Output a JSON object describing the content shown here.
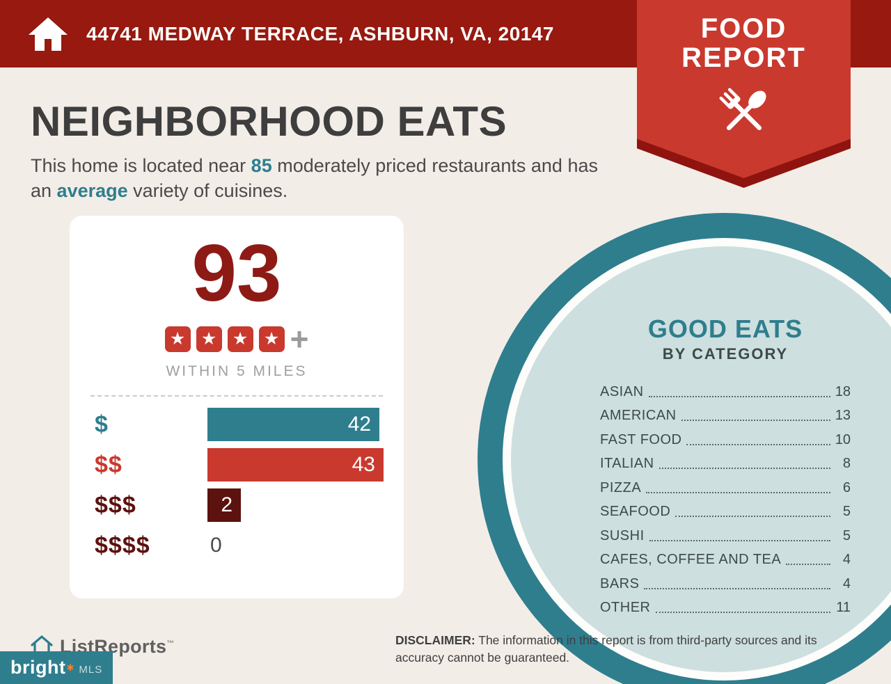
{
  "header": {
    "address": "44741 MEDWAY TERRACE, ASHBURN, VA, 20147"
  },
  "badge": {
    "title_line1": "FOOD",
    "title_line2": "REPORT"
  },
  "page": {
    "title": "NEIGHBORHOOD EATS",
    "intro_pre": "This home is located near ",
    "intro_count": "85",
    "intro_mid": " moderately priced restaurants and has an ",
    "intro_highlight": "average",
    "intro_post": " variety of cuisines."
  },
  "score_card": {
    "score": "93",
    "star_count": 4,
    "plus_sign": "+",
    "radius_label": "WITHIN 5 MILES",
    "price_rows": [
      {
        "label": "$",
        "value": 42,
        "bar_color": "#2E7E8E",
        "label_color": "#2E7E8E"
      },
      {
        "label": "$$",
        "value": 43,
        "bar_color": "#C9392E",
        "label_color": "#C9392E"
      },
      {
        "label": "$$$",
        "value": 2,
        "bar_color": "#5C120F",
        "label_color": "#5C120F"
      },
      {
        "label": "$$$$",
        "value": 0,
        "bar_color": "",
        "label_color": "#5C120F"
      }
    ]
  },
  "good_eats": {
    "title": "GOOD EATS",
    "subtitle": "BY CATEGORY",
    "categories": [
      {
        "label": "ASIAN",
        "value": 18
      },
      {
        "label": "AMERICAN",
        "value": 13
      },
      {
        "label": "FAST FOOD",
        "value": 10
      },
      {
        "label": "ITALIAN",
        "value": 8
      },
      {
        "label": "PIZZA",
        "value": 6
      },
      {
        "label": "SEAFOOD",
        "value": 5
      },
      {
        "label": "SUSHI",
        "value": 5
      },
      {
        "label": "CAFES, COFFEE AND TEA",
        "value": 4
      },
      {
        "label": "BARS",
        "value": 4
      },
      {
        "label": "OTHER",
        "value": 11
      }
    ]
  },
  "footer": {
    "listreports_label": "ListReports",
    "trademark": "™",
    "brand_name": "bright",
    "brand_star": "✱",
    "brand_suffix": "MLS",
    "disclaimer_label": "DISCLAIMER:",
    "disclaimer_text": " The information in this report is from third-party sources and its accuracy cannot be guaranteed."
  },
  "colors": {
    "header_red": "#97190F",
    "badge_red": "#C9392E",
    "badge_dark_red": "#8F1410",
    "teal": "#2E7E8E",
    "light_teal": "#CDDFDE",
    "score_red": "#8E1A15",
    "maroon": "#5C120F",
    "background": "#F3EDE7"
  },
  "chart_data": [
    {
      "type": "bar",
      "title": "Moderately priced restaurants by price level within 5 miles",
      "categories": [
        "$",
        "$$",
        "$$$",
        "$$$$"
      ],
      "values": [
        42,
        43,
        2,
        0
      ],
      "orientation": "horizontal",
      "xlim": [
        0,
        43
      ],
      "legend_position": "none",
      "grid": false
    },
    {
      "type": "table",
      "title": "GOOD EATS BY CATEGORY",
      "categories": [
        "ASIAN",
        "AMERICAN",
        "FAST FOOD",
        "ITALIAN",
        "PIZZA",
        "SEAFOOD",
        "SUSHI",
        "CAFES, COFFEE AND TEA",
        "BARS",
        "OTHER"
      ],
      "values": [
        18,
        13,
        10,
        8,
        6,
        5,
        5,
        4,
        4,
        11
      ]
    }
  ]
}
